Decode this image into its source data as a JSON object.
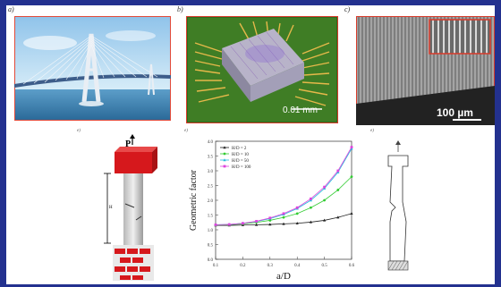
{
  "panels": {
    "a": {
      "label": "a)"
    },
    "b": {
      "label": "b)",
      "scalebar": "0.01 mm"
    },
    "c": {
      "label": "c)",
      "scalebar": "100 µm"
    },
    "d": {
      "label": "e)",
      "load_label": "P",
      "dim_label": "H"
    },
    "f": {
      "label": "e)"
    }
  },
  "chart_data": {
    "type": "line",
    "xlabel": "a/D",
    "ylabel": "Geometric factor",
    "xlim": [
      0.1,
      0.6
    ],
    "ylim": [
      0.0,
      4.0
    ],
    "xticks": [
      "0.1",
      "0.2",
      "0.3",
      "0.4",
      "0.5",
      "0.6"
    ],
    "yticks": [
      "0.0",
      "0.5",
      "1.0",
      "1.5",
      "2.0",
      "2.5",
      "3.0",
      "3.5",
      "4.0"
    ],
    "x": [
      0.1,
      0.15,
      0.2,
      0.25,
      0.3,
      0.35,
      0.4,
      0.45,
      0.5,
      0.55,
      0.6
    ],
    "series": [
      {
        "name": "H/D = 2",
        "color": "#222222",
        "marker": "triangle",
        "values": [
          1.15,
          1.15,
          1.16,
          1.17,
          1.18,
          1.2,
          1.22,
          1.26,
          1.32,
          1.42,
          1.55
        ]
      },
      {
        "name": "H/D = 10",
        "color": "#33cc33",
        "marker": "circle",
        "values": [
          1.16,
          1.17,
          1.2,
          1.25,
          1.32,
          1.42,
          1.55,
          1.75,
          2.0,
          2.35,
          2.8
        ]
      },
      {
        "name": "H/D = 50",
        "color": "#22bbdd",
        "marker": "triangle",
        "values": [
          1.17,
          1.18,
          1.22,
          1.28,
          1.38,
          1.52,
          1.72,
          2.0,
          2.4,
          2.95,
          3.75
        ]
      },
      {
        "name": "H/D = 100",
        "color": "#dd44dd",
        "marker": "square",
        "values": [
          1.17,
          1.18,
          1.22,
          1.29,
          1.4,
          1.55,
          1.75,
          2.05,
          2.45,
          3.0,
          3.8
        ]
      }
    ],
    "legend": "top-left"
  }
}
